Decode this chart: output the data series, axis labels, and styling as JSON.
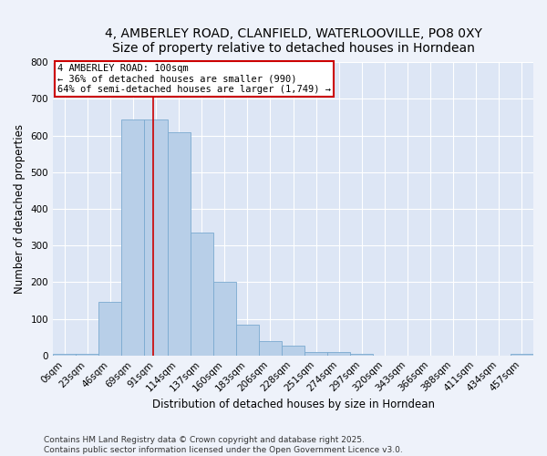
{
  "title_line1": "4, AMBERLEY ROAD, CLANFIELD, WATERLOOVILLE, PO8 0XY",
  "title_line2": "Size of property relative to detached houses in Horndean",
  "xlabel": "Distribution of detached houses by size in Horndean",
  "ylabel": "Number of detached properties",
  "bar_labels": [
    "0sqm",
    "23sqm",
    "46sqm",
    "69sqm",
    "91sqm",
    "114sqm",
    "137sqm",
    "160sqm",
    "183sqm",
    "206sqm",
    "228sqm",
    "251sqm",
    "274sqm",
    "297sqm",
    "320sqm",
    "343sqm",
    "366sqm",
    "388sqm",
    "411sqm",
    "434sqm",
    "457sqm"
  ],
  "bar_values": [
    5,
    5,
    145,
    645,
    645,
    610,
    335,
    200,
    83,
    40,
    27,
    10,
    10,
    5,
    0,
    0,
    0,
    0,
    0,
    0,
    4
  ],
  "bar_color": "#b8cfe8",
  "bar_edgecolor": "#7aaad0",
  "vline_color": "#cc0000",
  "annotation_text": "4 AMBERLEY ROAD: 100sqm\n← 36% of detached houses are smaller (990)\n64% of semi-detached houses are larger (1,749) →",
  "annotation_box_color": "#cc0000",
  "ylim": [
    0,
    800
  ],
  "yticks": [
    0,
    100,
    200,
    300,
    400,
    500,
    600,
    700,
    800
  ],
  "fig_background": "#eef2fa",
  "ax_background": "#dde6f5",
  "grid_color": "#ffffff",
  "title_fontsize": 10,
  "axis_label_fontsize": 8.5,
  "tick_fontsize": 7.5,
  "annot_fontsize": 7.5,
  "footer_line1": "Contains HM Land Registry data © Crown copyright and database right 2025.",
  "footer_line2": "Contains public sector information licensed under the Open Government Licence v3.0."
}
